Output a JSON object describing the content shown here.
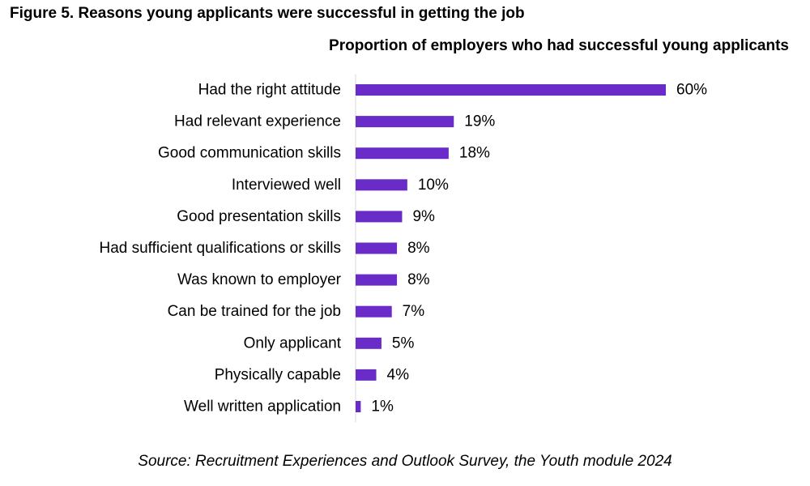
{
  "figure_title": "Figure 5. Reasons young applicants were successful in getting the job",
  "source": "Source: Recruitment Experiences and Outlook Survey, the Youth module 2024",
  "chart_data": {
    "type": "bar",
    "orientation": "horizontal",
    "title": "Proportion of employers who had successful young applicants",
    "categories": [
      "Had the right attitude",
      "Had relevant experience",
      "Good communication skills",
      "Interviewed well",
      "Good presentation skills",
      "Had sufficient qualifications or skills",
      "Was known to employer",
      "Can be trained for the job",
      "Only applicant",
      "Physically capable",
      "Well written application"
    ],
    "values": [
      60,
      19,
      18,
      10,
      9,
      8,
      8,
      7,
      5,
      4,
      1
    ],
    "data_labels": [
      "60%",
      "19%",
      "18%",
      "10%",
      "9%",
      "8%",
      "8%",
      "7%",
      "5%",
      "4%",
      "1%"
    ],
    "unit": "%",
    "xlim": [
      0,
      60
    ],
    "grid": false,
    "legend": "none",
    "bar_color": "#6a2cc8"
  }
}
